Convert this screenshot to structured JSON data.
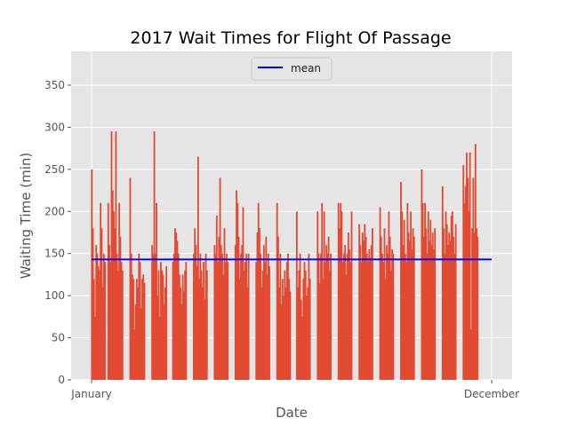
{
  "chart_data": {
    "type": "bar",
    "title": "2017 Wait Times for Flight Of Passage",
    "xlabel": "Date",
    "ylabel": "Waiting Time (min)",
    "ylim": [
      0,
      390
    ],
    "yticks": [
      0,
      50,
      100,
      150,
      200,
      250,
      300,
      350
    ],
    "x_range": [
      0,
      365
    ],
    "xticks": [
      {
        "label": "January",
        "day": 0
      },
      {
        "label": "December",
        "day": 365
      }
    ],
    "grid": true,
    "legend": {
      "position": "top-center",
      "entries": [
        {
          "label": "mean",
          "color": "#0000ff"
        }
      ]
    },
    "mean": 143,
    "bar_color": "#e24a33",
    "mean_color": "#0000ff",
    "clusters": [
      {
        "start": 0,
        "end": 12,
        "values": [
          250,
          180,
          120,
          75,
          160,
          150,
          135,
          130,
          210,
          180,
          110,
          150,
          140
        ]
      },
      {
        "start": 15,
        "end": 28,
        "values": [
          210,
          160,
          140,
          295,
          225,
          200,
          180,
          295,
          150,
          130,
          210,
          170,
          140,
          130
        ]
      },
      {
        "start": 35,
        "end": 48,
        "values": [
          240,
          150,
          125,
          120,
          60,
          90,
          120,
          110,
          150,
          140,
          85,
          120,
          125,
          115
        ]
      },
      {
        "start": 55,
        "end": 68,
        "values": [
          160,
          150,
          295,
          150,
          210,
          100,
          130,
          75,
          140,
          130,
          125,
          90,
          110,
          135
        ]
      },
      {
        "start": 74,
        "end": 86,
        "values": [
          140,
          150,
          180,
          175,
          165,
          150,
          125,
          110,
          90,
          125,
          105,
          130,
          140
        ]
      },
      {
        "start": 93,
        "end": 105,
        "values": [
          150,
          180,
          160,
          135,
          265,
          120,
          150,
          130,
          110,
          140,
          95,
          150,
          130
        ]
      },
      {
        "start": 112,
        "end": 124,
        "values": [
          160,
          150,
          195,
          140,
          170,
          240,
          160,
          150,
          125,
          180,
          140,
          150,
          140
        ]
      },
      {
        "start": 131,
        "end": 143,
        "values": [
          160,
          225,
          210,
          170,
          120,
          150,
          160,
          205,
          130,
          140,
          150,
          110,
          150
        ]
      },
      {
        "start": 150,
        "end": 162,
        "values": [
          140,
          175,
          210,
          180,
          150,
          110,
          130,
          160,
          140,
          170,
          125,
          150,
          135
        ]
      },
      {
        "start": 169,
        "end": 181,
        "values": [
          210,
          170,
          110,
          150,
          90,
          120,
          100,
          130,
          110,
          140,
          150,
          120,
          105
        ]
      },
      {
        "start": 187,
        "end": 199,
        "values": [
          200,
          110,
          130,
          150,
          95,
          75,
          120,
          140,
          130,
          100,
          110,
          150,
          120
        ]
      },
      {
        "start": 206,
        "end": 218,
        "values": [
          200,
          150,
          115,
          150,
          210,
          120,
          200,
          140,
          160,
          150,
          170,
          130,
          150
        ]
      },
      {
        "start": 225,
        "end": 237,
        "values": [
          210,
          180,
          210,
          200,
          140,
          150,
          160,
          125,
          150,
          175,
          155,
          140,
          200
        ]
      },
      {
        "start": 244,
        "end": 256,
        "values": [
          185,
          160,
          140,
          175,
          165,
          185,
          170,
          150,
          140,
          155,
          145,
          160,
          180
        ]
      },
      {
        "start": 263,
        "end": 275,
        "values": [
          205,
          170,
          150,
          140,
          180,
          120,
          160,
          150,
          200,
          170,
          130,
          155,
          150
        ]
      },
      {
        "start": 282,
        "end": 294,
        "values": [
          235,
          200,
          160,
          190,
          150,
          140,
          210,
          175,
          165,
          200,
          155,
          180,
          170
        ]
      },
      {
        "start": 301,
        "end": 313,
        "values": [
          250,
          210,
          170,
          210,
          180,
          150,
          200,
          165,
          190,
          160,
          175,
          155,
          180
        ]
      },
      {
        "start": 320,
        "end": 332,
        "values": [
          230,
          180,
          150,
          200,
          185,
          160,
          175,
          165,
          195,
          200,
          170,
          150,
          185
        ]
      },
      {
        "start": 339,
        "end": 352,
        "values": [
          255,
          210,
          230,
          270,
          240,
          200,
          270,
          60,
          180,
          240,
          175,
          280,
          180,
          170
        ]
      }
    ]
  }
}
